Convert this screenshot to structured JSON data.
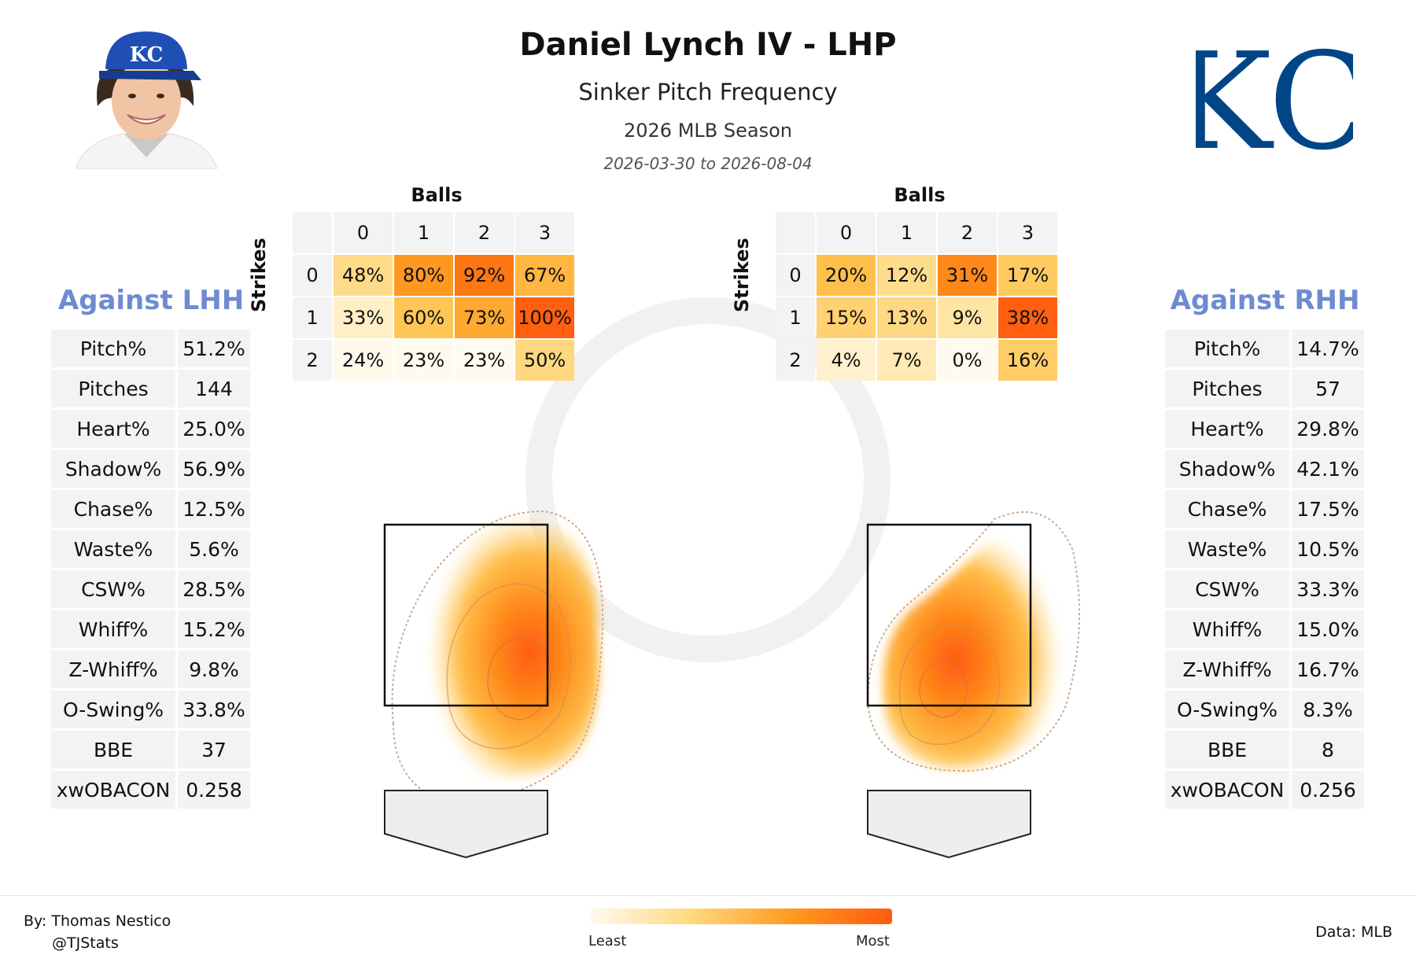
{
  "title": "Daniel Lynch IV - LHP",
  "subtitle": "Sinker Pitch Frequency",
  "season": "2026 MLB Season",
  "date_range": "2026-03-30 to 2026-08-04",
  "colors": {
    "accent_label": "#6e8bd1",
    "kc_blue": "#004687",
    "heat_low": "#fff3d6",
    "heat_high": "#ff5a10"
  },
  "icons": {
    "headshot": "player-headshot-icon",
    "logo": "team-logo-icon"
  },
  "logo_text": "KC",
  "left_panel": {
    "label": "Against LHH",
    "stats": [
      {
        "key": "Pitch%",
        "value": "51.2%"
      },
      {
        "key": "Pitches",
        "value": "144"
      },
      {
        "key": "Heart%",
        "value": "25.0%"
      },
      {
        "key": "Shadow%",
        "value": "56.9%"
      },
      {
        "key": "Chase%",
        "value": "12.5%"
      },
      {
        "key": "Waste%",
        "value": "5.6%"
      },
      {
        "key": "CSW%",
        "value": "28.5%"
      },
      {
        "key": "Whiff%",
        "value": "15.2%"
      },
      {
        "key": "Z-Whiff%",
        "value": "9.8%"
      },
      {
        "key": "O-Swing%",
        "value": "33.8%"
      },
      {
        "key": "BBE",
        "value": "37"
      },
      {
        "key": "xwOBACON",
        "value": "0.258"
      }
    ]
  },
  "right_panel": {
    "label": "Against RHH",
    "stats": [
      {
        "key": "Pitch%",
        "value": "14.7%"
      },
      {
        "key": "Pitches",
        "value": "57"
      },
      {
        "key": "Heart%",
        "value": "29.8%"
      },
      {
        "key": "Shadow%",
        "value": "42.1%"
      },
      {
        "key": "Chase%",
        "value": "17.5%"
      },
      {
        "key": "Waste%",
        "value": "10.5%"
      },
      {
        "key": "CSW%",
        "value": "33.3%"
      },
      {
        "key": "Whiff%",
        "value": "15.0%"
      },
      {
        "key": "Z-Whiff%",
        "value": "16.7%"
      },
      {
        "key": "O-Swing%",
        "value": "8.3%"
      },
      {
        "key": "BBE",
        "value": "8"
      },
      {
        "key": "xwOBACON",
        "value": "0.256"
      }
    ]
  },
  "chart_data": [
    {
      "type": "heatmap",
      "balls_label": "Balls",
      "strikes_label": "Strikes",
      "balls": [
        "0",
        "1",
        "2",
        "3"
      ],
      "strikes": [
        "0",
        "1",
        "2"
      ],
      "values": [
        [
          48,
          80,
          92,
          67
        ],
        [
          33,
          60,
          73,
          100
        ],
        [
          24,
          23,
          23,
          50
        ]
      ],
      "labels": [
        [
          "48%",
          "80%",
          "92%",
          "67%"
        ],
        [
          "33%",
          "60%",
          "73%",
          "100%"
        ],
        [
          "24%",
          "23%",
          "23%",
          "50%"
        ]
      ]
    },
    {
      "type": "heatmap",
      "balls_label": "Balls",
      "strikes_label": "Strikes",
      "balls": [
        "0",
        "1",
        "2",
        "3"
      ],
      "strikes": [
        "0",
        "1",
        "2"
      ],
      "values": [
        [
          20,
          12,
          31,
          17
        ],
        [
          15,
          13,
          9,
          38
        ],
        [
          4,
          7,
          0,
          16
        ]
      ],
      "labels": [
        [
          "20%",
          "12%",
          "31%",
          "17%"
        ],
        [
          "15%",
          "13%",
          "9%",
          "38%"
        ],
        [
          "4%",
          "7%",
          "0%",
          "16%"
        ]
      ]
    }
  ],
  "colorbar": {
    "least": "Least",
    "most": "Most"
  },
  "credits": {
    "by": "By: Thomas Nestico",
    "handle": "@TJStats",
    "data": "Data: MLB"
  }
}
